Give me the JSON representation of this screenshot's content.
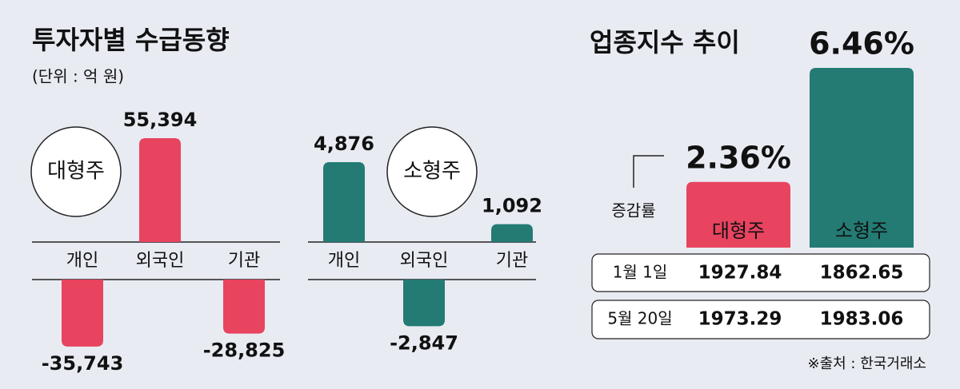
{
  "title": "투자자별 수급동향",
  "unit": "(단위 : 억 원)",
  "chart_data": [
    {
      "type": "bar",
      "label": "대형주",
      "categories": [
        "개인",
        "외국인",
        "기관"
      ],
      "values": [
        -35743,
        55394,
        -28825
      ],
      "value_labels": [
        "-35,743",
        "55,394",
        "-28,825"
      ],
      "color": "#e8435f"
    },
    {
      "type": "bar",
      "label": "소형주",
      "categories": [
        "개인",
        "외국인",
        "기관"
      ],
      "values": [
        4876,
        -2847,
        1092
      ],
      "value_labels": [
        "4,876",
        "-2,847",
        "1,092"
      ],
      "color": "#237b74"
    },
    {
      "type": "column",
      "title": "업종지수 추이",
      "y_label": "증감률",
      "categories": [
        "대형주",
        "소형주"
      ],
      "values": [
        2.36,
        6.46
      ],
      "value_labels": [
        "2.36%",
        "6.46%"
      ],
      "colors": [
        "#e8435f",
        "#237b74"
      ]
    }
  ],
  "table": {
    "rows": [
      [
        "1월 1일",
        "1927.84",
        "1862.65"
      ],
      [
        "5월 20일",
        "1973.29",
        "1983.06"
      ]
    ]
  },
  "source": "※출처 : 한국거래소"
}
